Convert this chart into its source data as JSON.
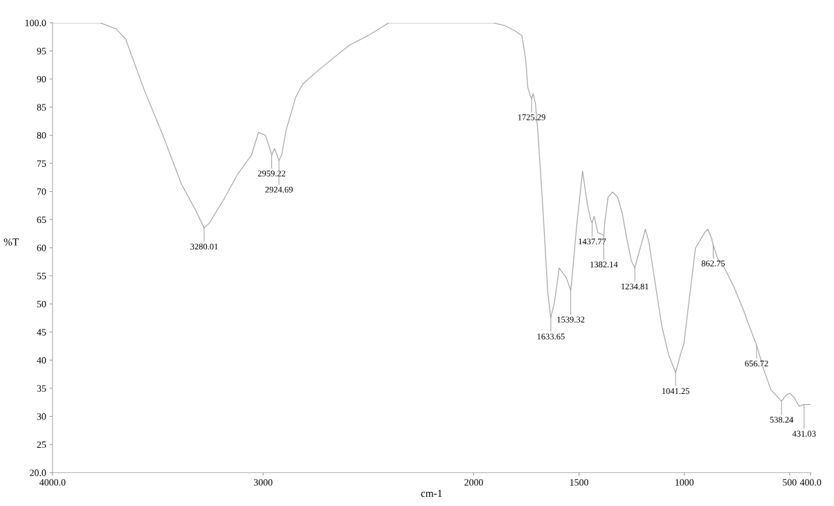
{
  "chart_data": {
    "type": "line",
    "xlabel": "cm-1",
    "ylabel": "%T",
    "x": [
      4000,
      3774,
      3697,
      3653,
      3564,
      3476,
      3388,
      3321,
      3280,
      3255,
      3188,
      3122,
      3055,
      3022,
      2989,
      2959,
      2945,
      2925,
      2912,
      2890,
      2845,
      2812,
      2724,
      2591,
      2502,
      2403,
      1908,
      1853,
      1809,
      1771,
      1754,
      1743,
      1732,
      1725,
      1718,
      1707,
      1694,
      1671,
      1649,
      1634,
      1616,
      1594,
      1583,
      1561,
      1539,
      1533,
      1511,
      1483,
      1461,
      1445,
      1438,
      1428,
      1411,
      1382,
      1378,
      1362,
      1340,
      1317,
      1295,
      1273,
      1251,
      1235,
      1223,
      1201,
      1185,
      1168,
      1140,
      1107,
      1074,
      1041,
      1019,
      1002,
      975,
      947,
      930,
      903,
      888,
      870,
      863,
      842,
      809,
      764,
      720,
      687,
      657,
      621,
      588,
      538,
      516,
      499,
      477,
      455,
      431,
      420,
      402
    ],
    "series": [
      {
        "color": "#a8a8a8",
        "values": [
          100,
          100,
          98.9,
          97.1,
          88,
          80,
          71.3,
          66.7,
          63.5,
          64.4,
          68.5,
          73,
          76.5,
          80.5,
          80,
          76.5,
          77.6,
          75.5,
          76.5,
          81,
          86.8,
          89.1,
          92,
          96,
          97.7,
          100,
          100,
          99.5,
          98.7,
          97.7,
          93.7,
          88.5,
          87.1,
          86.5,
          87.4,
          85.7,
          79.9,
          66.7,
          52.4,
          47.5,
          50.4,
          56.4,
          55.8,
          54.7,
          52.4,
          54.7,
          63.9,
          73.6,
          67.9,
          65,
          64.4,
          65.6,
          62.7,
          62.2,
          64.4,
          69,
          69.9,
          69,
          66.2,
          61.6,
          57.6,
          56.4,
          58.1,
          61,
          63.3,
          61,
          54.1,
          46.1,
          40.9,
          37.8,
          40.9,
          42.9,
          51.3,
          59.9,
          61,
          62.7,
          63.3,
          61.6,
          60.5,
          58.1,
          56.4,
          53,
          49,
          45.6,
          42.7,
          38.1,
          34.7,
          32.7,
          33.8,
          34.1,
          33.3,
          31.8,
          32.1,
          32.1,
          32.1
        ]
      }
    ],
    "xlim": [
      4000,
      400
    ],
    "xticks": [
      {
        "value": 4000,
        "label": "4000.0"
      },
      3000,
      2000,
      1500,
      1000,
      500,
      {
        "value": 400,
        "label": "400.0"
      }
    ],
    "ylim": [
      20,
      100
    ],
    "yticks": [
      {
        "value": 20,
        "label": "20.0"
      },
      25,
      30,
      35,
      40,
      45,
      50,
      55,
      60,
      65,
      70,
      75,
      80,
      85,
      90,
      95,
      {
        "value": 100,
        "label": "100.0"
      }
    ],
    "grid": false,
    "legend": false,
    "marker": "none",
    "line_style": "solid",
    "annotations": [
      {
        "text": "3280.01",
        "x": 3280.01,
        "y": 63.5
      },
      {
        "text": "2959.22",
        "x": 2959.22,
        "y": 76.5
      },
      {
        "text": "2924.69",
        "x": 2924.69,
        "y": 75.5
      },
      {
        "text": "1725.29",
        "x": 1725.29,
        "y": 86.5
      },
      {
        "text": "1633.65",
        "x": 1633.65,
        "y": 47.5
      },
      {
        "text": "1539.32",
        "x": 1539.32,
        "y": 52.4
      },
      {
        "text": "1437.77",
        "x": 1437.77,
        "y": 64.4
      },
      {
        "text": "1382.14",
        "x": 1382.14,
        "y": 62.2
      },
      {
        "text": "1234.81",
        "x": 1234.81,
        "y": 56.4
      },
      {
        "text": "1041.25",
        "x": 1041.25,
        "y": 37.8
      },
      {
        "text": "862.75",
        "x": 862.75,
        "y": 60.5
      },
      {
        "text": "656.72",
        "x": 656.72,
        "y": 42.7
      },
      {
        "text": "538.24",
        "x": 538.24,
        "y": 32.7
      },
      {
        "text": "431.03",
        "x": 431.03,
        "y": 32.1
      }
    ]
  }
}
